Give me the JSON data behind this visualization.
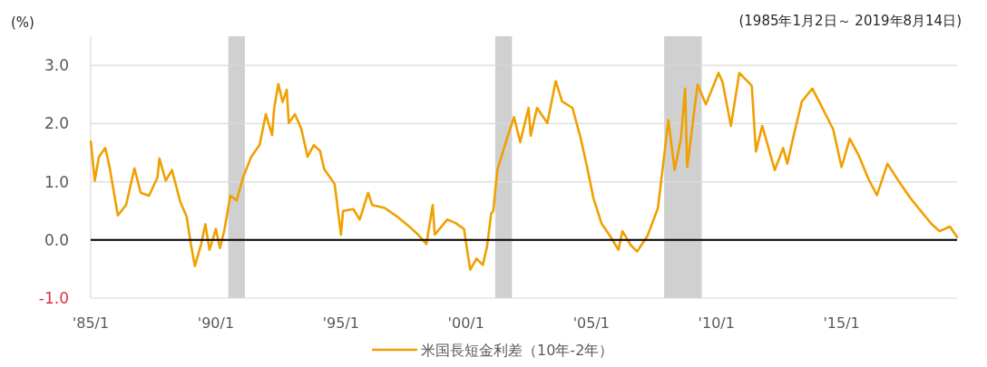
{
  "chart_data": {
    "type": "line",
    "ylabel": "(%)",
    "annotations": [
      "(1985年1月2日～ 2019年8月14日)"
    ],
    "xlim": [
      "1985-01-01",
      "2019-08-14"
    ],
    "xticks": [
      {
        "value": "1985-01-01",
        "label": "'85/1"
      },
      {
        "value": "1990-01-01",
        "label": "'90/1"
      },
      {
        "value": "1995-01-01",
        "label": "'95/1"
      },
      {
        "value": "2000-01-01",
        "label": "'00/1"
      },
      {
        "value": "2005-01-01",
        "label": "'05/1"
      },
      {
        "value": "2010-01-01",
        "label": "'10/1"
      },
      {
        "value": "2015-01-01",
        "label": "'15/1"
      }
    ],
    "ylim": [
      -1,
      3.5
    ],
    "yticks": [
      {
        "value": -1,
        "label": "-1.0"
      },
      {
        "value": 0,
        "label": "0.0"
      },
      {
        "value": 1,
        "label": "1.0"
      },
      {
        "value": 2,
        "label": "2.0"
      },
      {
        "value": 3,
        "label": "3.0"
      }
    ],
    "grid": "y",
    "legend": "bottom",
    "ref_lines": [
      {
        "axis": "y",
        "value": 0,
        "color": "#000000"
      }
    ],
    "bands": [
      {
        "axis": "x",
        "from": "1990-07",
        "to": "1991-03",
        "color": "#d0d0d0"
      },
      {
        "axis": "x",
        "from": "2001-03",
        "to": "2001-11",
        "color": "#d0d0d0"
      },
      {
        "axis": "x",
        "from": "2007-12",
        "to": "2009-06",
        "color": "#d0d0d0"
      }
    ],
    "series": [
      {
        "name": "米国長短金利差（10年-2年）",
        "color": "#f0a000",
        "x": [
          "1985-01-02",
          "1985-03",
          "1985-05",
          "1985-08",
          "1985-10",
          "1986-02",
          "1986-06",
          "1986-10",
          "1987-01",
          "1987-05",
          "1987-09",
          "1987-10",
          "1988-01",
          "1988-04",
          "1988-08",
          "1988-11",
          "1989-01",
          "1989-03",
          "1989-06",
          "1989-08",
          "1989-10",
          "1990-01",
          "1990-03",
          "1990-05",
          "1990-08",
          "1990-11",
          "1991-02",
          "1991-06",
          "1991-10",
          "1992-01",
          "1992-04",
          "1992-05",
          "1992-07",
          "1992-09",
          "1992-11",
          "1992-12",
          "1993-03",
          "1993-06",
          "1993-09",
          "1993-12",
          "1994-03",
          "1994-05",
          "1994-10",
          "1995-01",
          "1995-02",
          "1995-07",
          "1995-10",
          "1996-02",
          "1996-04",
          "1996-10",
          "1997-04",
          "1997-11",
          "1998-02",
          "1998-06",
          "1998-09",
          "1998-10",
          "1999-04",
          "1999-08",
          "1999-12",
          "2000-03",
          "2000-06",
          "2000-09",
          "2000-11",
          "2001-01",
          "2001-02",
          "2001-04",
          "2001-09",
          "2001-12",
          "2002-03",
          "2002-07",
          "2002-08",
          "2002-11",
          "2003-04",
          "2003-08",
          "2003-11",
          "2004-04",
          "2004-08",
          "2004-11",
          "2005-02",
          "2005-06",
          "2005-10",
          "2006-02",
          "2006-04",
          "2006-08",
          "2006-11",
          "2007-04",
          "2007-09",
          "2008-02",
          "2008-05",
          "2008-08",
          "2008-10",
          "2008-11",
          "2009-04",
          "2009-08",
          "2010-02",
          "2010-04",
          "2010-08",
          "2010-12",
          "2011-06",
          "2011-08",
          "2011-11",
          "2012-02",
          "2012-05",
          "2012-09",
          "2012-11",
          "2013-02",
          "2013-06",
          "2013-11",
          "2014-03",
          "2014-09",
          "2015-01",
          "2015-05",
          "2015-09",
          "2016-02",
          "2016-06",
          "2016-11",
          "2017-05",
          "2017-10",
          "2018-03",
          "2018-08",
          "2018-12",
          "2019-05",
          "2019-08-14"
        ],
        "values": [
          1.69,
          1.02,
          1.43,
          1.58,
          1.27,
          0.42,
          0.6,
          1.23,
          0.81,
          0.76,
          1.07,
          1.4,
          1.02,
          1.2,
          0.65,
          0.4,
          -0.07,
          -0.45,
          -0.07,
          0.27,
          -0.17,
          0.19,
          -0.14,
          0.14,
          0.76,
          0.68,
          1.07,
          1.43,
          1.63,
          2.16,
          1.8,
          2.26,
          2.68,
          2.37,
          2.58,
          2.01,
          2.16,
          1.91,
          1.43,
          1.63,
          1.53,
          1.22,
          0.96,
          0.09,
          0.5,
          0.53,
          0.35,
          0.81,
          0.6,
          0.55,
          0.4,
          0.19,
          0.09,
          -0.07,
          0.6,
          0.09,
          0.35,
          0.29,
          0.19,
          -0.51,
          -0.32,
          -0.43,
          -0.12,
          0.45,
          0.5,
          1.2,
          1.79,
          2.11,
          1.68,
          2.27,
          1.79,
          2.27,
          2.01,
          2.73,
          2.38,
          2.27,
          1.74,
          1.25,
          0.72,
          0.28,
          0.07,
          -0.17,
          0.15,
          -0.09,
          -0.2,
          0.07,
          0.55,
          2.06,
          1.2,
          1.74,
          2.6,
          1.25,
          2.67,
          2.33,
          2.87,
          2.71,
          1.96,
          2.87,
          2.65,
          1.52,
          1.96,
          1.58,
          1.2,
          1.58,
          1.31,
          1.79,
          2.38,
          2.6,
          2.33,
          1.9,
          1.25,
          1.74,
          1.47,
          1.04,
          0.77,
          1.31,
          0.98,
          0.72,
          0.5,
          0.28,
          0.15,
          0.23,
          0.05
        ]
      }
    ]
  }
}
